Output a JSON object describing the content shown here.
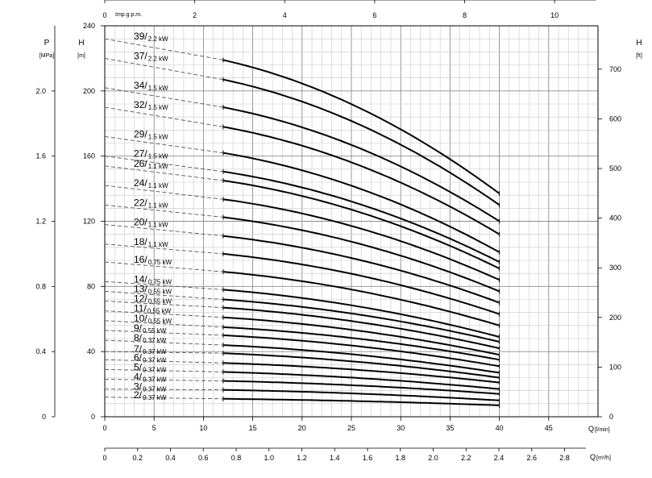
{
  "chart_data": {
    "type": "line",
    "grid": true,
    "x_axes": {
      "impgpm": {
        "label": "Imp.g.p.m.",
        "ticks": [
          "0",
          "2",
          "4",
          "6",
          "8",
          "10"
        ],
        "tick_values": [
          0,
          2,
          4,
          6,
          8,
          10
        ],
        "range": [
          0,
          11.0
        ]
      },
      "lmin": {
        "label": "Q",
        "unit": "[l/min]",
        "ticks": [
          "0",
          "5",
          "10",
          "15",
          "20",
          "25",
          "30",
          "35",
          "40",
          "45"
        ],
        "tick_values": [
          0,
          5,
          10,
          15,
          20,
          25,
          30,
          35,
          40,
          45
        ],
        "range": [
          0,
          50
        ]
      },
      "m3h": {
        "label": "Q",
        "unit": "[m³/h]",
        "ticks": [
          "0",
          "0.2",
          "0.4",
          "0.6",
          "0.8",
          "1.0",
          "1.2",
          "1.4",
          "1.6",
          "1.8",
          "2.0",
          "2.2",
          "2.4",
          "2.6",
          "2.8"
        ],
        "tick_values": [
          0,
          0.2,
          0.4,
          0.6,
          0.8,
          1.0,
          1.2,
          1.4,
          1.6,
          1.8,
          2.0,
          2.2,
          2.4,
          2.6,
          2.8
        ],
        "range": [
          0,
          3.0
        ]
      }
    },
    "y_axes": {
      "p": {
        "label": "P",
        "unit": "[MPa]",
        "ticks": [
          "0",
          "0.4",
          "0.8",
          "1.2",
          "1.6",
          "2.0"
        ],
        "tick_values": [
          0,
          0.4,
          0.8,
          1.2,
          1.6,
          2.0
        ],
        "range": [
          0,
          2.4
        ]
      },
      "h_m": {
        "label": "H",
        "unit": "[m]",
        "ticks": [
          "0",
          "40",
          "80",
          "120",
          "160",
          "200",
          "240"
        ],
        "tick_values": [
          0,
          40,
          80,
          120,
          160,
          200,
          240
        ],
        "range": [
          0,
          240
        ]
      },
      "h_ft": {
        "label": "H",
        "unit": "[ft]",
        "ticks": [
          "0",
          "100",
          "200",
          "300",
          "400",
          "500",
          "600",
          "700"
        ],
        "tick_values": [
          0,
          100,
          200,
          300,
          400,
          500,
          600,
          700
        ],
        "range": [
          0,
          787.4
        ]
      }
    },
    "q_start": 12,
    "q_end": 40,
    "series": [
      {
        "name": "2",
        "power": "0.37 kW",
        "h0": 12,
        "h_start": 11,
        "h_end": 7
      },
      {
        "name": "3",
        "power": "0.37 kW",
        "h0": 17,
        "h_start": 16.5,
        "h_end": 10
      },
      {
        "name": "4",
        "power": "0.37 kW",
        "h0": 23,
        "h_start": 22,
        "h_end": 14
      },
      {
        "name": "5",
        "power": "0.37 kW",
        "h0": 29,
        "h_start": 27.5,
        "h_end": 17
      },
      {
        "name": "6",
        "power": "0.37 kW",
        "h0": 35,
        "h_start": 33,
        "h_end": 21
      },
      {
        "name": "7",
        "power": "0.37 kW",
        "h0": 40,
        "h_start": 39,
        "h_end": 24
      },
      {
        "name": "8",
        "power": "0.37 kW",
        "h0": 47,
        "h_start": 44,
        "h_end": 27
      },
      {
        "name": "9",
        "power": "0.55 kW",
        "h0": 53,
        "h_start": 50,
        "h_end": 31
      },
      {
        "name": "10",
        "power": "0.55 kW",
        "h0": 59,
        "h_start": 55,
        "h_end": 35
      },
      {
        "name": "11",
        "power": "0.55 kW",
        "h0": 65,
        "h_start": 61,
        "h_end": 38
      },
      {
        "name": "12",
        "power": "0.55 kW",
        "h0": 71,
        "h_start": 67,
        "h_end": 42
      },
      {
        "name": "13",
        "power": "0.55 kW",
        "h0": 77,
        "h_start": 72,
        "h_end": 46
      },
      {
        "name": "14",
        "power": "0.75 kW",
        "h0": 83,
        "h_start": 78,
        "h_end": 49
      },
      {
        "name": "16",
        "power": "0.75 kW",
        "h0": 95,
        "h_start": 89,
        "h_end": 56
      },
      {
        "name": "18",
        "power": "1.1 kW",
        "h0": 106,
        "h_start": 100,
        "h_end": 63
      },
      {
        "name": "20",
        "power": "1.1 kW",
        "h0": 118,
        "h_start": 111,
        "h_end": 70
      },
      {
        "name": "22",
        "power": "1.1 kW",
        "h0": 130,
        "h_start": 122.5,
        "h_end": 77
      },
      {
        "name": "24",
        "power": "1.1 kW",
        "h0": 142,
        "h_start": 133.5,
        "h_end": 84
      },
      {
        "name": "26",
        "power": "1.1 kW",
        "h0": 154,
        "h_start": 145,
        "h_end": 91
      },
      {
        "name": "27",
        "power": "1.5 kW",
        "h0": 160,
        "h_start": 150.5,
        "h_end": 95
      },
      {
        "name": "29",
        "power": "1.5 kW",
        "h0": 172,
        "h_start": 162,
        "h_end": 101
      },
      {
        "name": "32",
        "power": "1.5 kW",
        "h0": 190,
        "h_start": 178,
        "h_end": 112
      },
      {
        "name": "34",
        "power": "1.5 kW",
        "h0": 202,
        "h_start": 190,
        "h_end": 120
      },
      {
        "name": "37",
        "power": "2.2 kW",
        "h0": 220,
        "h_start": 207,
        "h_end": 130
      },
      {
        "name": "39",
        "power": "2.2 kW",
        "h0": 232,
        "h_start": 219,
        "h_end": 137
      }
    ]
  }
}
